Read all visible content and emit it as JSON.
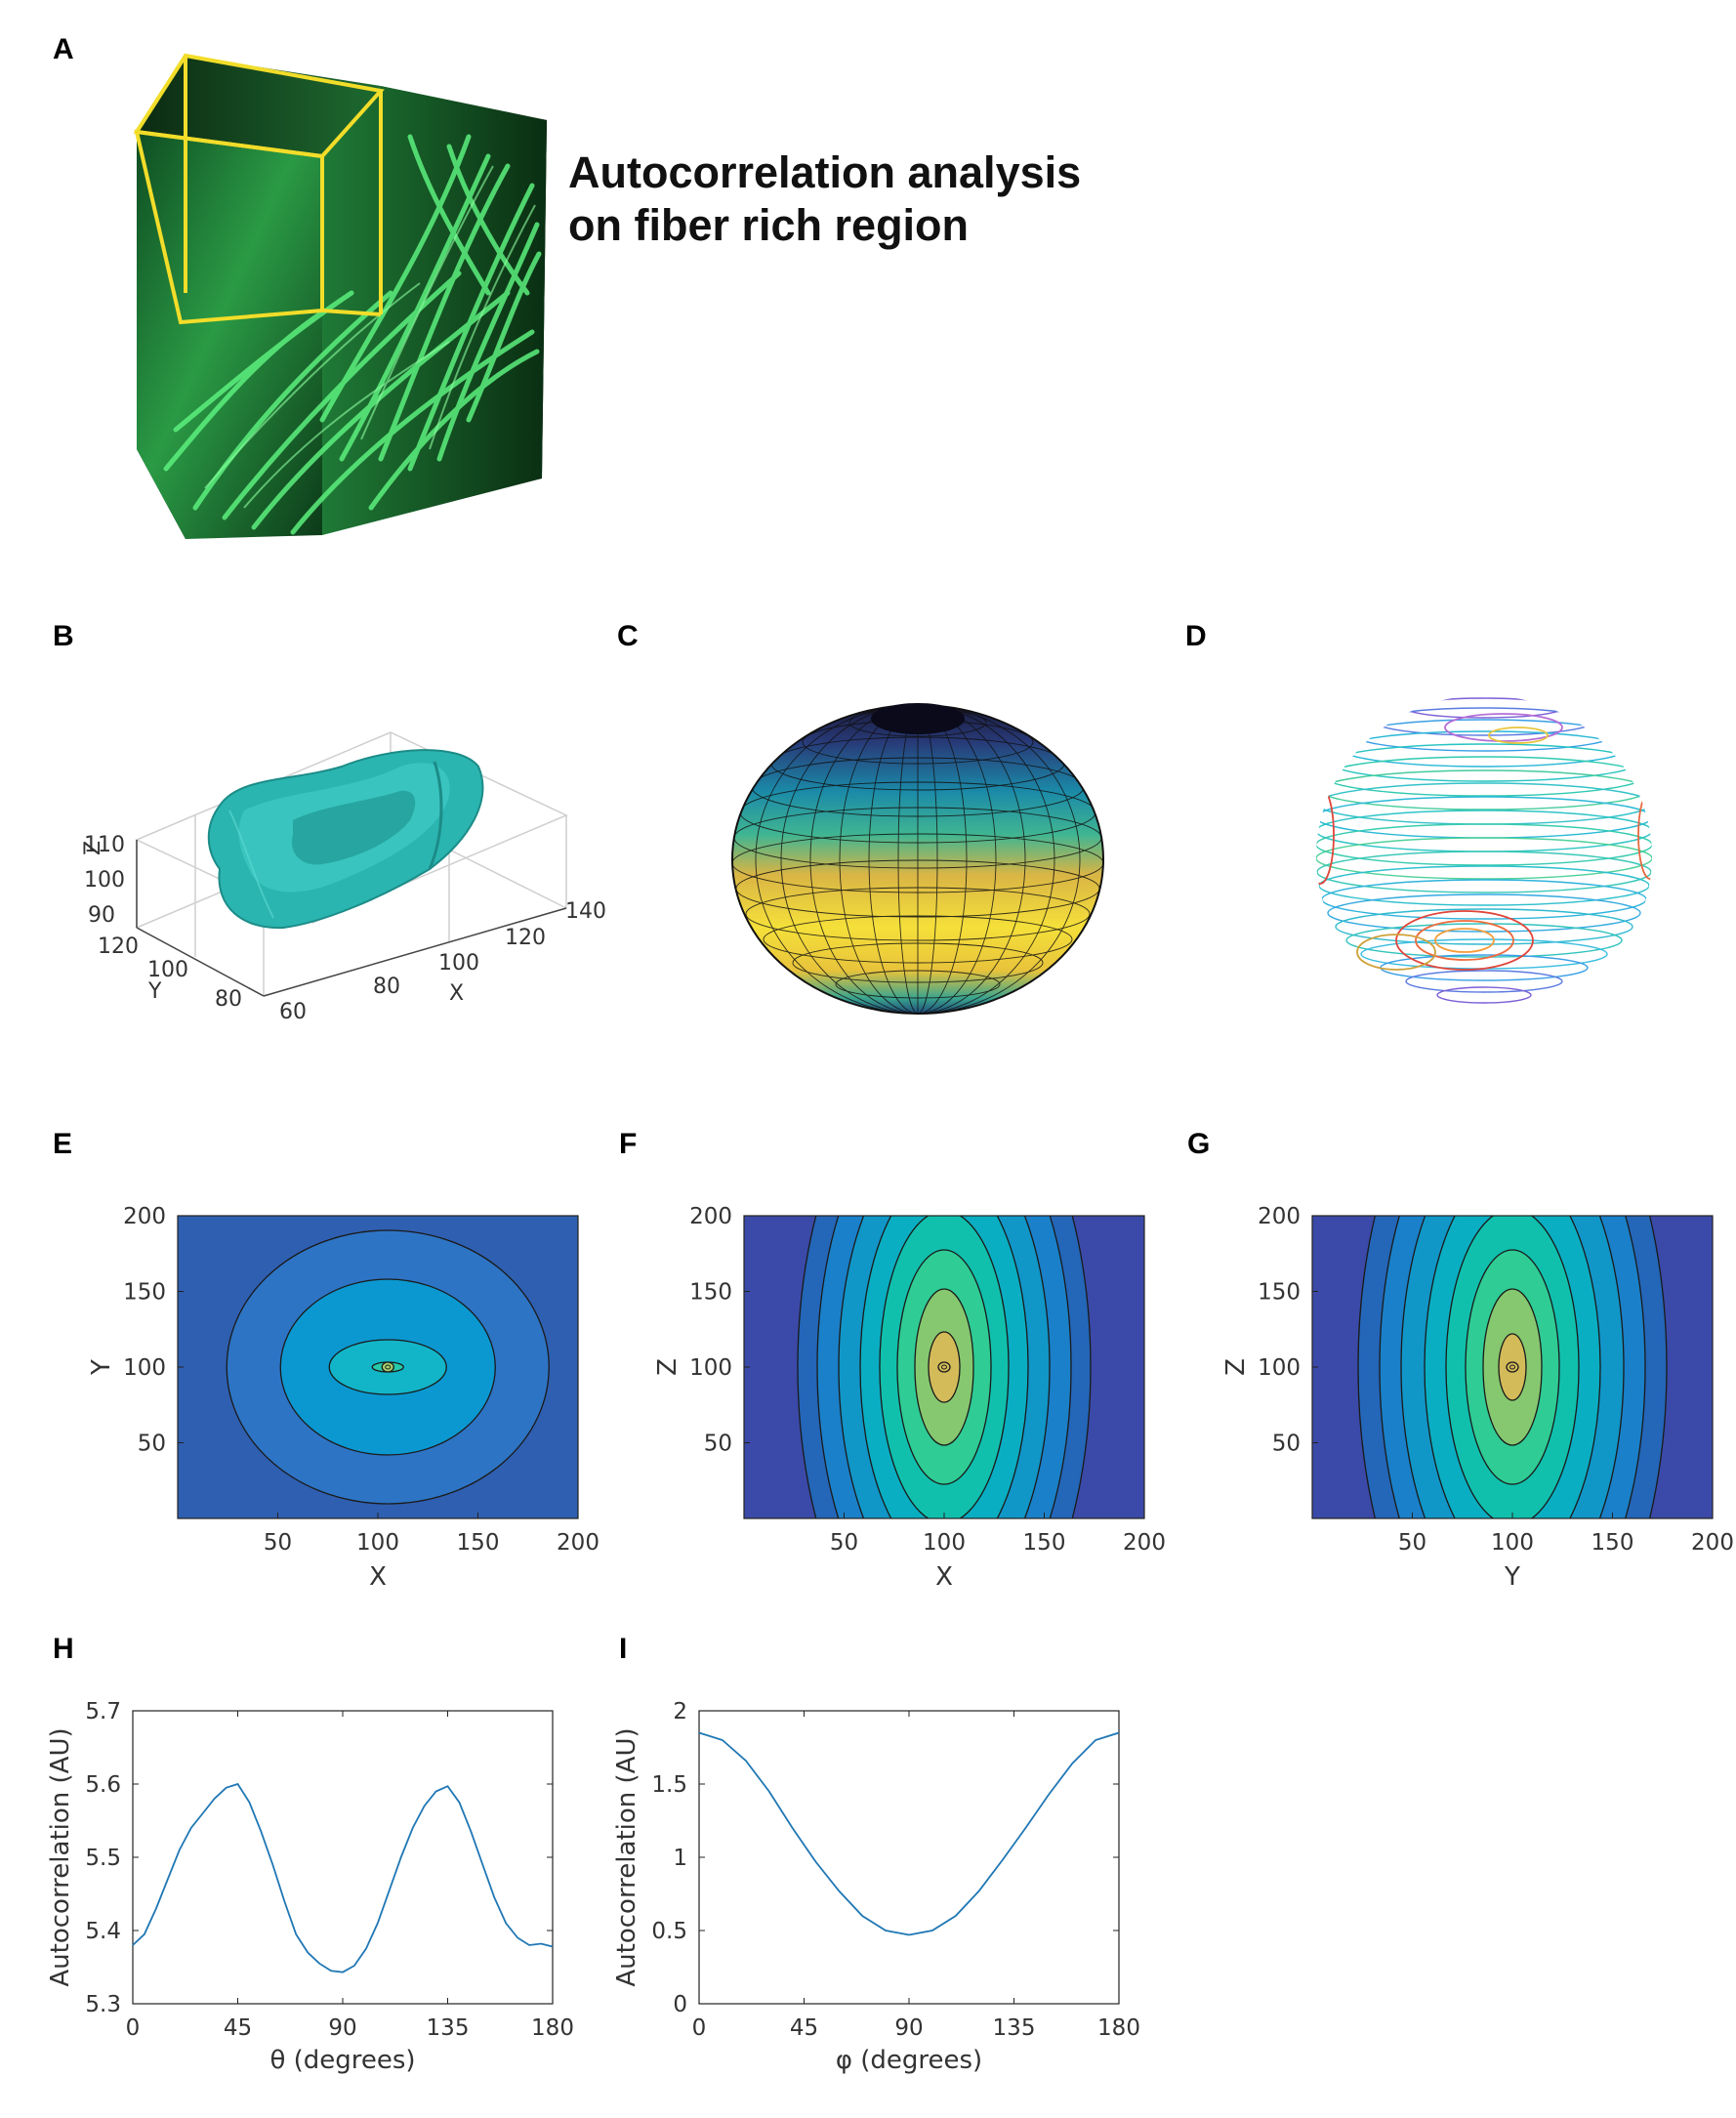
{
  "panels": {
    "A": "A",
    "B": "B",
    "C": "C",
    "D": "D",
    "E": "E",
    "F": "F",
    "G": "G",
    "H": "H",
    "I": "I"
  },
  "headline": {
    "line1": "Autocorrelation analysis",
    "line2": "on fiber rich region"
  },
  "colors": {
    "fiber_green": "#3fd66a",
    "selection_box": "#f2dd2a",
    "isosurface": "#2bb5b0",
    "line_series": "#1f77b4"
  },
  "panel_b": {
    "zlabel": "Z",
    "ylabel": "Y",
    "xlabel": "X",
    "z_ticks": [
      "90",
      "100",
      "110"
    ],
    "y_ticks": [
      "80",
      "100",
      "120"
    ],
    "x_ticks": [
      "60",
      "80",
      "100",
      "120",
      "140"
    ]
  },
  "chart_data": [
    {
      "id": "E",
      "type": "heatmap",
      "xlabel": "X",
      "ylabel": "Y",
      "xlim": [
        0,
        200
      ],
      "ylim": [
        0,
        200
      ],
      "x_ticks": [
        50,
        100,
        150,
        200
      ],
      "y_ticks": [
        50,
        100,
        150,
        200
      ],
      "center": [
        105,
        100
      ],
      "contour_radii": [
        [
          16,
          5
        ],
        [
          60,
          28
        ],
        [
          110,
          90
        ],
        [
          165,
          140
        ]
      ],
      "fill_colors": [
        "#2f5fb0",
        "#2e74c4",
        "#0b98d0",
        "#12b5c8",
        "#26c9a8",
        "#a6cf6e"
      ]
    },
    {
      "id": "F",
      "type": "heatmap",
      "xlabel": "X",
      "ylabel": "Z",
      "xlim": [
        0,
        200
      ],
      "ylim": [
        0,
        200
      ],
      "x_ticks": [
        50,
        100,
        150,
        200
      ],
      "y_ticks": [
        50,
        100,
        150,
        200
      ],
      "center": [
        100,
        100
      ],
      "contour_radii": [
        [
          16,
          36
        ],
        [
          30,
          80
        ],
        [
          48,
          120
        ],
        [
          66,
          160
        ],
        [
          86,
          200
        ],
        [
          108,
          240
        ],
        [
          130,
          280
        ],
        [
          150,
          320
        ]
      ],
      "fill_colors": [
        "#3b4aa8",
        "#2466b8",
        "#1a80c9",
        "#1196c8",
        "#0aaec2",
        "#10c0ad",
        "#2fcc95",
        "#86c86f",
        "#d4bb5a"
      ]
    },
    {
      "id": "G",
      "type": "heatmap",
      "xlabel": "Y",
      "ylabel": "Z",
      "xlim": [
        0,
        200
      ],
      "ylim": [
        0,
        200
      ],
      "x_ticks": [
        50,
        100,
        150,
        200
      ],
      "y_ticks": [
        50,
        100,
        150,
        200
      ],
      "center": [
        100,
        100
      ],
      "contour_radii": [
        [
          14,
          34
        ],
        [
          30,
          80
        ],
        [
          48,
          120
        ],
        [
          68,
          162
        ],
        [
          90,
          205
        ],
        [
          114,
          250
        ],
        [
          136,
          295
        ],
        [
          158,
          340
        ]
      ],
      "fill_colors": [
        "#3b4aa8",
        "#2466b8",
        "#1a80c9",
        "#1196c8",
        "#0aaec2",
        "#10c0ad",
        "#2fcc95",
        "#86c86f",
        "#d4bb5a"
      ]
    },
    {
      "id": "H",
      "type": "line",
      "xlabel": "θ (degrees)",
      "ylabel": "Autocorrelation (AU)",
      "xlim": [
        0,
        180
      ],
      "ylim": [
        5.3,
        5.7
      ],
      "x_ticks": [
        0,
        45,
        90,
        135,
        180
      ],
      "y_ticks": [
        5.3,
        5.4,
        5.5,
        5.6,
        5.7
      ],
      "series": [
        {
          "x": [
            0,
            5,
            10,
            15,
            20,
            25,
            30,
            35,
            40,
            45,
            50,
            55,
            60,
            65,
            70,
            75,
            80,
            85,
            90,
            95,
            100,
            105,
            110,
            115,
            120,
            125,
            130,
            135,
            140,
            145,
            150,
            155,
            160,
            165,
            170,
            175,
            180
          ],
          "y": [
            5.38,
            5.395,
            5.43,
            5.47,
            5.51,
            5.54,
            5.56,
            5.58,
            5.595,
            5.6,
            5.575,
            5.535,
            5.49,
            5.44,
            5.395,
            5.37,
            5.355,
            5.345,
            5.343,
            5.352,
            5.375,
            5.41,
            5.455,
            5.5,
            5.54,
            5.57,
            5.59,
            5.597,
            5.575,
            5.535,
            5.49,
            5.445,
            5.41,
            5.39,
            5.38,
            5.382,
            5.378
          ]
        }
      ]
    },
    {
      "id": "I",
      "type": "line",
      "xlabel": "φ (degrees)",
      "ylabel": "Autocorrelation (AU)",
      "xlim": [
        0,
        180
      ],
      "ylim": [
        0,
        2
      ],
      "x_ticks": [
        0,
        45,
        90,
        135,
        180
      ],
      "y_ticks": [
        0,
        0.5,
        1,
        1.5,
        2
      ],
      "y_tick_labels": [
        "0",
        "0.5",
        "1",
        "1.5",
        "2"
      ],
      "series": [
        {
          "x": [
            0,
            10,
            20,
            30,
            40,
            50,
            60,
            70,
            80,
            90,
            100,
            110,
            120,
            130,
            140,
            150,
            160,
            170,
            180
          ],
          "y": [
            1.85,
            1.8,
            1.66,
            1.45,
            1.2,
            0.97,
            0.77,
            0.6,
            0.5,
            0.47,
            0.5,
            0.6,
            0.77,
            0.98,
            1.2,
            1.43,
            1.64,
            1.8,
            1.85
          ]
        }
      ]
    }
  ]
}
